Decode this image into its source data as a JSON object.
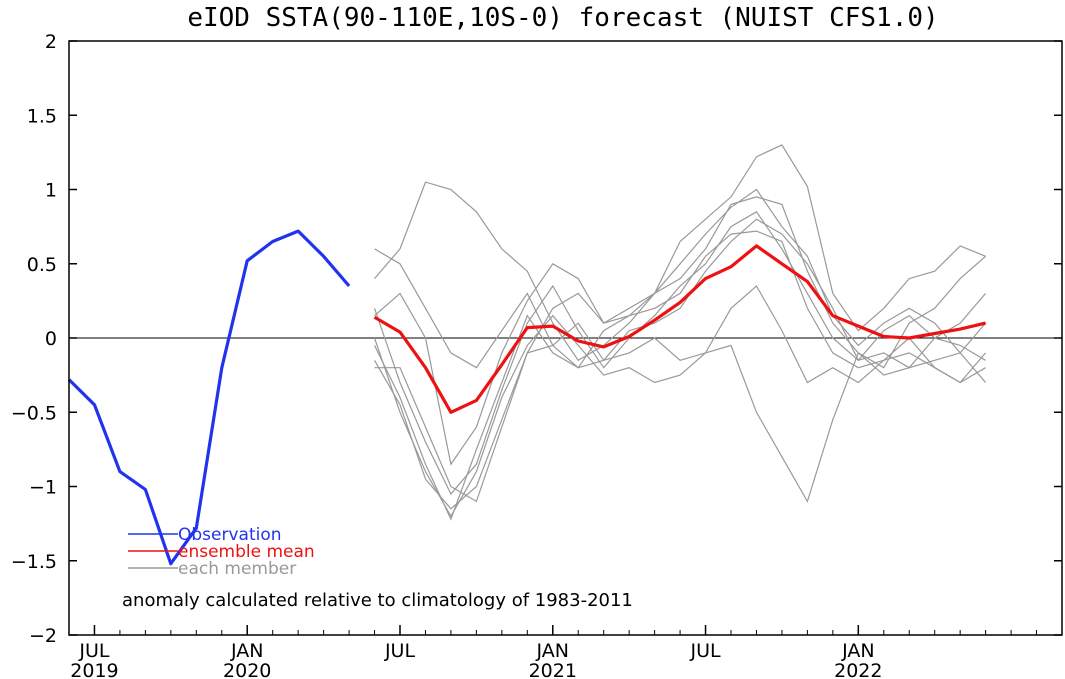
{
  "chart_data": {
    "type": "line",
    "title": "eIOD SSTA(90-110E,10S-0) forecast (NUIST CFS1.0)",
    "xlabel": "",
    "ylabel": "",
    "ylim": [
      -2,
      2
    ],
    "xlim": [
      "2019-06",
      "2022-09"
    ],
    "grid": false,
    "legend_placement": "bottom-left",
    "zero_line": true,
    "y_ticks": [
      "2",
      "1.5",
      "1",
      "0.5",
      "0",
      "-0.5",
      "-1",
      "-1.5",
      "-2"
    ],
    "x_ticks": [
      {
        "month": "2019-07",
        "label": "JUL",
        "year": "2019"
      },
      {
        "month": "2020-01",
        "label": "JAN",
        "year": "2020"
      },
      {
        "month": "2020-07",
        "label": "JUL",
        "year": ""
      },
      {
        "month": "2021-01",
        "label": "JAN",
        "year": "2021"
      },
      {
        "month": "2021-07",
        "label": "JUL",
        "year": ""
      },
      {
        "month": "2022-01",
        "label": "JAN",
        "year": "2022"
      }
    ],
    "legend": [
      {
        "label": "Observation",
        "color": "#2233ee"
      },
      {
        "label": "ensemble mean",
        "color": "#ee1111"
      },
      {
        "label": "each member",
        "color": "#999999"
      }
    ],
    "annotation": "anomaly calculated relative to climatology of 1983-2011",
    "series": [
      {
        "name": "Observation",
        "color": "#2233ee",
        "x": [
          "2019-06",
          "2019-07",
          "2019-08",
          "2019-09",
          "2019-10",
          "2019-11",
          "2019-12",
          "2020-01",
          "2020-02",
          "2020-03",
          "2020-04",
          "2020-05"
        ],
        "values": [
          -0.28,
          -0.45,
          -0.9,
          -1.02,
          -1.52,
          -1.28,
          -0.2,
          0.52,
          0.65,
          0.72,
          0.55,
          0.35
        ]
      },
      {
        "name": "ensemble mean",
        "color": "#ee1111",
        "x": [
          "2020-06",
          "2020-07",
          "2020-08",
          "2020-09",
          "2020-10",
          "2020-11",
          "2020-12",
          "2021-01",
          "2021-02",
          "2021-03",
          "2021-04",
          "2021-05",
          "2021-06",
          "2021-07",
          "2021-08",
          "2021-09",
          "2021-10",
          "2021-11",
          "2021-12",
          "2022-01",
          "2022-02",
          "2022-03",
          "2022-04",
          "2022-05",
          "2022-06"
        ],
        "values": [
          0.14,
          0.04,
          -0.2,
          -0.5,
          -0.42,
          -0.18,
          0.07,
          0.08,
          -0.02,
          -0.06,
          0.01,
          0.12,
          0.24,
          0.4,
          0.48,
          0.62,
          0.5,
          0.38,
          0.15,
          0.08,
          0.01,
          0.0,
          0.03,
          0.06,
          0.1
        ]
      }
    ],
    "members": {
      "color": "#999999",
      "x": [
        "2020-06",
        "2020-07",
        "2020-08",
        "2020-09",
        "2020-10",
        "2020-11",
        "2020-12",
        "2021-01",
        "2021-02",
        "2021-03",
        "2021-04",
        "2021-05",
        "2021-06",
        "2021-07",
        "2021-08",
        "2021-09",
        "2021-10",
        "2021-11",
        "2021-12",
        "2022-01",
        "2022-02",
        "2022-03",
        "2022-04",
        "2022-05",
        "2022-06"
      ],
      "values": [
        [
          0.6,
          0.5,
          0.2,
          -0.1,
          -0.2,
          0.05,
          0.3,
          -0.05,
          -0.2,
          0.05,
          0.15,
          0.2,
          0.3,
          0.55,
          0.7,
          0.72,
          0.65,
          0.2,
          -0.1,
          -0.2,
          -0.15,
          -0.1,
          -0.2,
          -0.3,
          -0.1
        ],
        [
          0.4,
          0.6,
          1.05,
          1.0,
          0.85,
          0.6,
          0.45,
          0.1,
          -0.15,
          -0.05,
          0.1,
          0.3,
          0.4,
          0.6,
          0.9,
          0.95,
          0.9,
          0.45,
          0.1,
          -0.1,
          -0.2,
          0.1,
          0.2,
          0.4,
          0.55
        ],
        [
          -0.2,
          -0.2,
          -0.6,
          -1.0,
          -1.1,
          -0.6,
          -0.1,
          0.2,
          0.3,
          0.1,
          0.15,
          0.3,
          0.5,
          0.7,
          0.88,
          1.0,
          0.75,
          0.55,
          0.15,
          -0.05,
          0.1,
          0.2,
          0.1,
          -0.1,
          -0.3
        ],
        [
          0.0,
          -0.5,
          -0.9,
          -1.2,
          -0.9,
          -0.4,
          -0.05,
          0.15,
          -0.05,
          -0.25,
          -0.2,
          -0.3,
          -0.25,
          -0.1,
          -0.05,
          -0.5,
          -0.8,
          -1.1,
          -0.55,
          -0.1,
          -0.25,
          -0.2,
          0.0,
          -0.05,
          -0.15
        ],
        [
          0.15,
          0.3,
          0.0,
          -0.85,
          -0.6,
          -0.1,
          0.25,
          0.5,
          0.4,
          0.1,
          0.2,
          0.3,
          0.65,
          0.8,
          0.95,
          1.22,
          1.3,
          1.02,
          0.3,
          0.05,
          0.2,
          0.4,
          0.45,
          0.62,
          0.55
        ],
        [
          -0.15,
          -0.45,
          -0.95,
          -1.15,
          -1.0,
          -0.55,
          -0.1,
          -0.05,
          0.1,
          -0.15,
          -0.1,
          0.0,
          -0.15,
          -0.1,
          0.2,
          0.35,
          0.05,
          -0.3,
          -0.2,
          -0.3,
          -0.15,
          0.0,
          -0.2,
          -0.3,
          -0.2
        ],
        [
          0.2,
          -0.3,
          -0.7,
          -1.05,
          -0.85,
          -0.35,
          0.1,
          0.35,
          0.05,
          -0.2,
          0.0,
          0.15,
          0.35,
          0.5,
          0.75,
          0.85,
          0.6,
          0.3,
          0.0,
          -0.15,
          0.05,
          0.15,
          0.0,
          0.1,
          0.3
        ],
        [
          -0.05,
          -0.4,
          -0.85,
          -1.22,
          -0.75,
          -0.3,
          0.15,
          -0.1,
          -0.2,
          -0.15,
          0.05,
          0.1,
          0.2,
          0.45,
          0.65,
          0.8,
          0.7,
          0.5,
          0.2,
          -0.15,
          -0.1,
          -0.2,
          -0.15,
          -0.1,
          0.1
        ]
      ]
    }
  }
}
